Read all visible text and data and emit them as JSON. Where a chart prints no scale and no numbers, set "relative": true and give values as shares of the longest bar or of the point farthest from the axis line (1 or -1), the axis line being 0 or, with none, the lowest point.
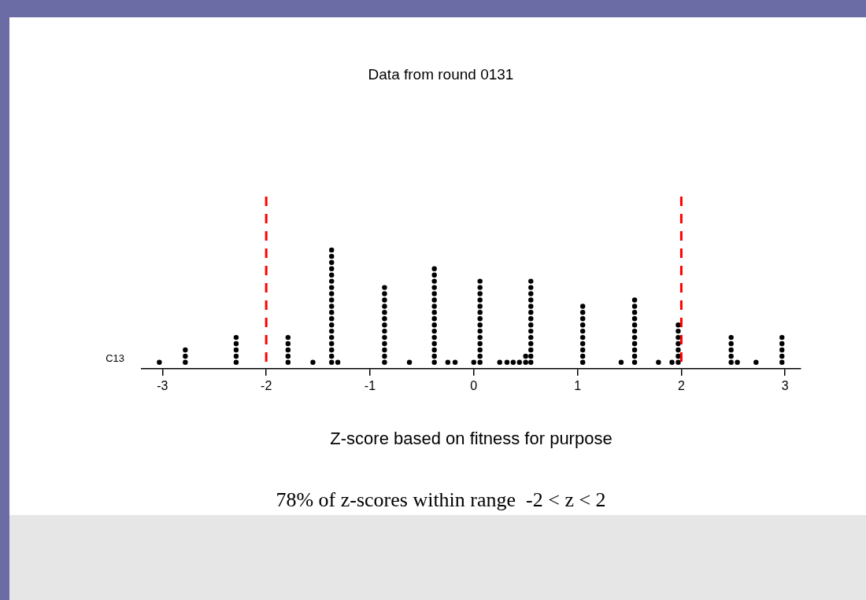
{
  "chart_data": {
    "type": "scatter",
    "title": "Data from round 0131",
    "xlabel": "Z-score based on fitness for purpose",
    "ylabel": "C13",
    "relative": true,
    "marker": "circle",
    "legend": false,
    "grid": false,
    "xlim": [
      -3.2,
      3.15
    ],
    "xticks": [
      -3,
      -2,
      -1,
      0,
      1,
      2,
      3
    ],
    "ref_lines": [
      {
        "axis": "x",
        "value": -2,
        "color": "#ff0000",
        "line_style": "dashed"
      },
      {
        "axis": "x",
        "value": 2,
        "color": "#ff0000",
        "line_style": "dashed"
      }
    ],
    "annotations": [
      "78% of z-scores within range  -2 < z < 2"
    ],
    "series": [
      {
        "color": "#000000",
        "x": [
          -3.03,
          -2.78,
          -2.78,
          -2.78,
          -2.29,
          -2.29,
          -2.29,
          -2.29,
          -2.29,
          -1.79,
          -1.79,
          -1.79,
          -1.79,
          -1.79,
          -1.55,
          -1.37,
          -1.37,
          -1.37,
          -1.37,
          -1.37,
          -1.37,
          -1.37,
          -1.37,
          -1.37,
          -1.37,
          -1.37,
          -1.37,
          -1.37,
          -1.37,
          -1.37,
          -1.37,
          -1.37,
          -1.37,
          -1.37,
          -1.31,
          -0.86,
          -0.86,
          -0.86,
          -0.86,
          -0.86,
          -0.86,
          -0.86,
          -0.86,
          -0.86,
          -0.86,
          -0.86,
          -0.86,
          -0.86,
          -0.62,
          -0.38,
          -0.38,
          -0.38,
          -0.38,
          -0.38,
          -0.38,
          -0.38,
          -0.38,
          -0.38,
          -0.38,
          -0.38,
          -0.38,
          -0.38,
          -0.38,
          -0.38,
          -0.38,
          -0.25,
          -0.18,
          0,
          0.06,
          0.06,
          0.06,
          0.06,
          0.06,
          0.06,
          0.06,
          0.06,
          0.06,
          0.06,
          0.06,
          0.06,
          0.06,
          0.06,
          0.25,
          0.32,
          0.38,
          0.44,
          0.5,
          0.5,
          0.55,
          0.55,
          0.55,
          0.55,
          0.55,
          0.55,
          0.55,
          0.55,
          0.55,
          0.55,
          0.55,
          0.55,
          0.55,
          0.55,
          1.05,
          1.05,
          1.05,
          1.05,
          1.05,
          1.05,
          1.05,
          1.05,
          1.05,
          1.05,
          1.42,
          1.55,
          1.55,
          1.55,
          1.55,
          1.55,
          1.55,
          1.55,
          1.55,
          1.55,
          1.55,
          1.55,
          1.78,
          1.91,
          1.97,
          1.97,
          1.97,
          1.97,
          1.97,
          1.97,
          1.97,
          2.48,
          2.48,
          2.48,
          2.48,
          2.48,
          2.54,
          2.72,
          2.97,
          2.97,
          2.97,
          2.97,
          2.97
        ],
        "values": [
          0.053,
          0.053,
          0.105,
          0.158,
          0.053,
          0.105,
          0.158,
          0.211,
          0.263,
          0.053,
          0.105,
          0.158,
          0.211,
          0.263,
          0.053,
          0.053,
          0.105,
          0.158,
          0.211,
          0.263,
          0.316,
          0.368,
          0.421,
          0.474,
          0.526,
          0.579,
          0.632,
          0.684,
          0.737,
          0.789,
          0.842,
          0.895,
          0.947,
          1,
          0.053,
          0.053,
          0.105,
          0.158,
          0.211,
          0.263,
          0.316,
          0.368,
          0.421,
          0.474,
          0.526,
          0.579,
          0.632,
          0.684,
          0.053,
          0.053,
          0.105,
          0.158,
          0.211,
          0.263,
          0.316,
          0.368,
          0.421,
          0.474,
          0.526,
          0.579,
          0.632,
          0.684,
          0.737,
          0.789,
          0.842,
          0.053,
          0.053,
          0.053,
          0.053,
          0.105,
          0.158,
          0.211,
          0.263,
          0.316,
          0.368,
          0.421,
          0.474,
          0.526,
          0.579,
          0.632,
          0.684,
          0.737,
          0.053,
          0.053,
          0.053,
          0.053,
          0.053,
          0.105,
          0.053,
          0.105,
          0.158,
          0.211,
          0.263,
          0.316,
          0.368,
          0.421,
          0.474,
          0.526,
          0.579,
          0.632,
          0.684,
          0.737,
          0.053,
          0.105,
          0.158,
          0.211,
          0.263,
          0.316,
          0.368,
          0.421,
          0.474,
          0.526,
          0.053,
          0.053,
          0.105,
          0.158,
          0.211,
          0.263,
          0.316,
          0.368,
          0.421,
          0.474,
          0.526,
          0.579,
          0.053,
          0.053,
          0.053,
          0.105,
          0.158,
          0.211,
          0.263,
          0.316,
          0.368,
          0.053,
          0.105,
          0.158,
          0.211,
          0.263,
          0.053,
          0.053,
          0.053,
          0.105,
          0.158,
          0.211,
          0.263
        ]
      }
    ]
  }
}
